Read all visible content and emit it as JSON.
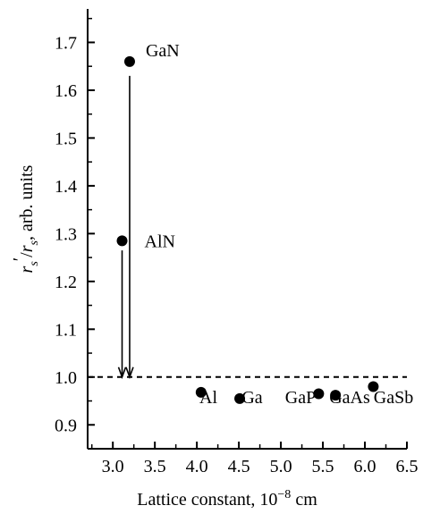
{
  "chart_data": {
    "type": "scatter",
    "title": "",
    "xlabel": "Lattice constant, 10",
    "xlabel_exponent": "−8",
    "xlabel_unit": " cm",
    "ylabel_parts": [
      "r",
      "s",
      "′",
      "/",
      "r",
      "s",
      ", arb. units"
    ],
    "xlim": [
      2.7,
      6.5
    ],
    "ylim": [
      0.85,
      1.77
    ],
    "x_ticks": [
      3.0,
      3.5,
      4.0,
      4.5,
      5.0,
      5.5,
      6.0,
      6.5
    ],
    "x_tick_labels": [
      "3.0",
      "3.5",
      "4.0",
      "4.5",
      "5.0",
      "5.5",
      "6.0",
      "6.5"
    ],
    "y_ticks": [
      0.9,
      1.0,
      1.1,
      1.2,
      1.3,
      1.4,
      1.5,
      1.6,
      1.7
    ],
    "y_tick_labels": [
      "0.9",
      "1.0",
      "1.1",
      "1.2",
      "1.3",
      "1.4",
      "1.5",
      "1.6",
      "1.7"
    ],
    "grid": false,
    "reference_line": {
      "y": 1.0,
      "style": "dashed"
    },
    "points": [
      {
        "x": 3.2,
        "y": 1.66
      },
      {
        "x": 3.11,
        "y": 1.285
      },
      {
        "x": 4.05,
        "y": 0.968
      },
      {
        "x": 4.51,
        "y": 0.955
      },
      {
        "x": 5.45,
        "y": 0.965
      },
      {
        "x": 5.65,
        "y": 0.962
      },
      {
        "x": 6.1,
        "y": 0.98
      }
    ],
    "labels": [
      "GaN",
      "AlN",
      "Al",
      "Ga",
      "GaP",
      "GaAs",
      "GaSb"
    ],
    "arrows": [
      {
        "x": 3.2,
        "y_from": 1.63,
        "y_to": 1.0
      },
      {
        "x": 3.11,
        "y_from": 1.265,
        "y_to": 1.0
      }
    ]
  }
}
